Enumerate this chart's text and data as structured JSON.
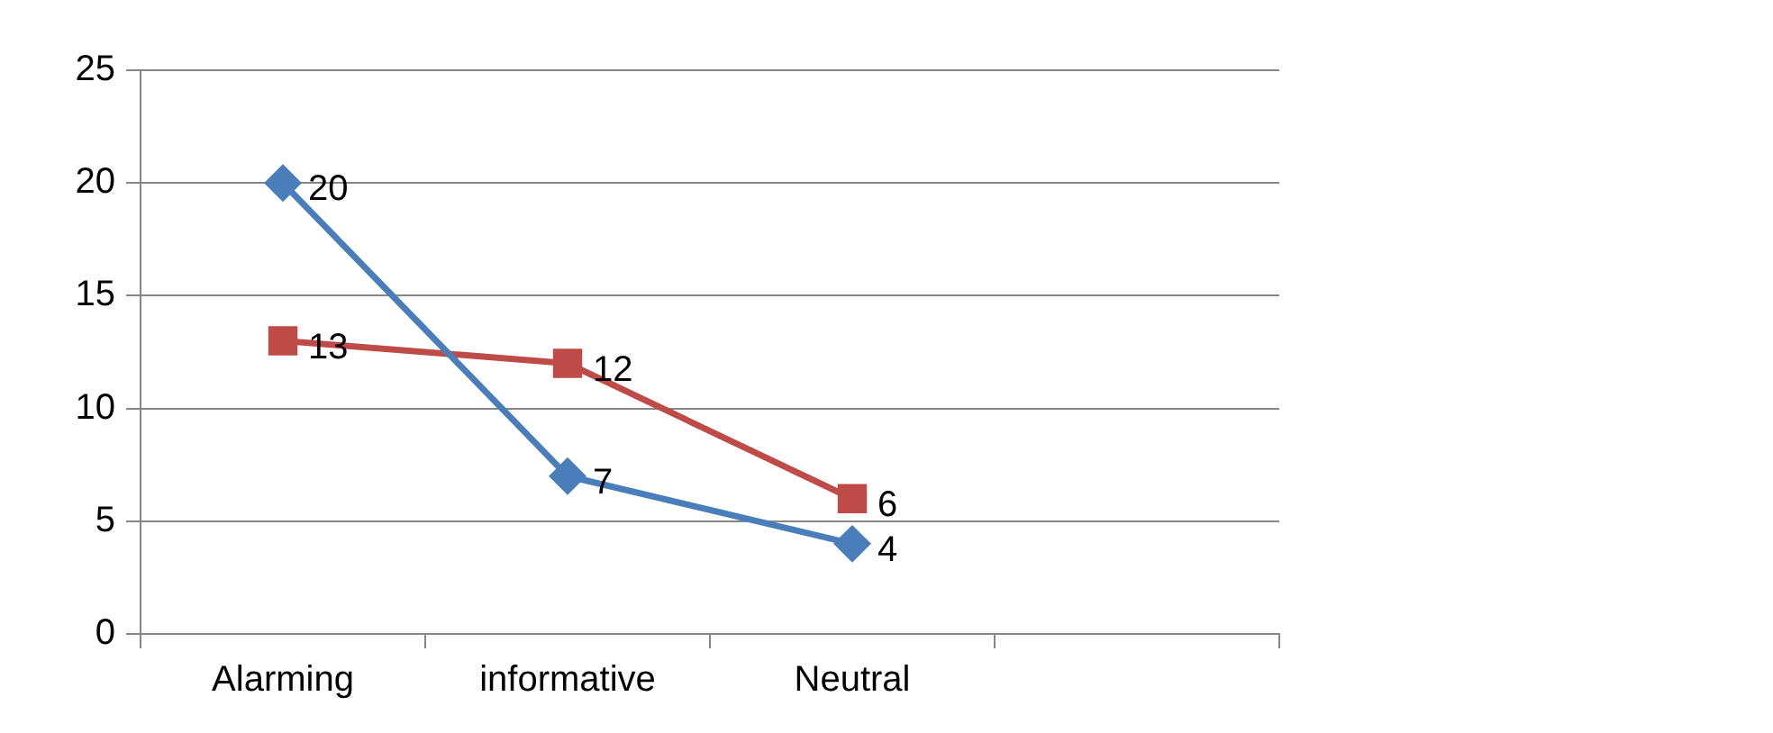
{
  "chart_data": {
    "type": "line",
    "categories": [
      "Alarming",
      "informative",
      "Neutral",
      null
    ],
    "series": [
      {
        "color": "#4a7ebb",
        "marker": "diamond",
        "values": [
          20,
          7,
          4,
          null
        ]
      },
      {
        "color": "#be4b48",
        "marker": "square",
        "values": [
          13,
          12,
          6,
          null
        ]
      }
    ],
    "ylim": [
      0,
      25
    ],
    "yticks": [
      0,
      5,
      10,
      15,
      20,
      25
    ],
    "grid": "y",
    "data_labels": true,
    "line_style": "solid"
  }
}
